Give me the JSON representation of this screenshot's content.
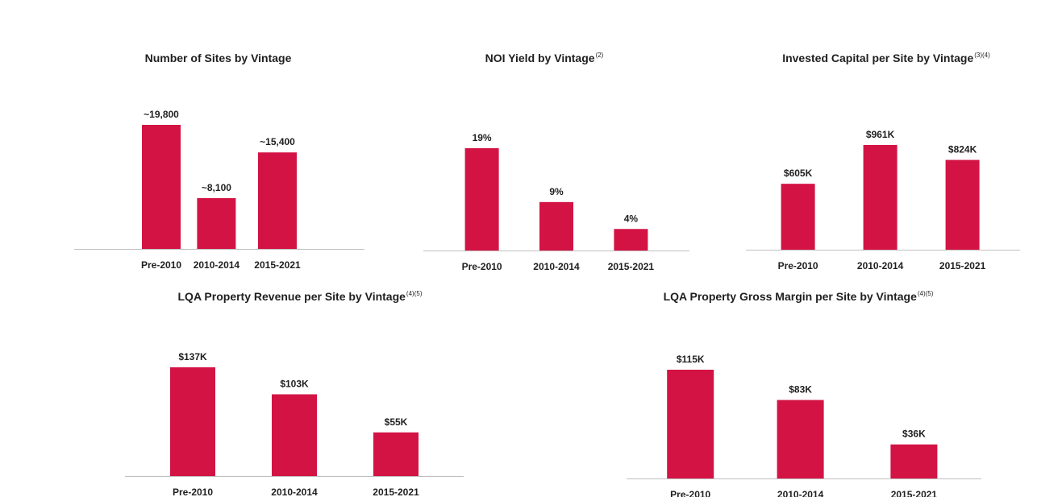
{
  "colors": {
    "bar": "#d31344",
    "axis": "#bfbfbf",
    "text": "#1f1f1f"
  },
  "chart_data": [
    {
      "type": "bar",
      "title": "Number of Sites by Vintage",
      "title_note": "",
      "categories": [
        "Pre-2010",
        "2010-2014",
        "2015-2021"
      ],
      "values": [
        19800,
        8100,
        15400
      ],
      "data_labels": [
        "~19,800",
        "~8,100",
        "~15,400"
      ],
      "grid": false,
      "legend": "none"
    },
    {
      "type": "bar",
      "title": "NOI Yield by Vintage",
      "title_note": "(2)",
      "categories": [
        "Pre-2010",
        "2010-2014",
        "2015-2021"
      ],
      "values": [
        19,
        9,
        4
      ],
      "data_labels": [
        "19%",
        "9%",
        "4%"
      ],
      "grid": false,
      "legend": "none"
    },
    {
      "type": "bar",
      "title": "Invested Capital per Site by Vintage",
      "title_note": "(3)(4)",
      "categories": [
        "Pre-2010",
        "2010-2014",
        "2015-2021"
      ],
      "values": [
        605,
        961,
        824
      ],
      "data_labels": [
        "$605K",
        "$961K",
        "$824K"
      ],
      "grid": false,
      "legend": "none"
    },
    {
      "type": "bar",
      "title": "LQA Property Revenue per Site by Vintage",
      "title_note": "(4)(5)",
      "categories": [
        "Pre-2010",
        "2010-2014",
        "2015-2021"
      ],
      "values": [
        137,
        103,
        55
      ],
      "data_labels": [
        "$137K",
        "$103K",
        "$55K"
      ],
      "grid": false,
      "legend": "none"
    },
    {
      "type": "bar",
      "title": "LQA Property Gross Margin per Site by Vintage",
      "title_note": "(4)(5)",
      "categories": [
        "Pre-2010",
        "2010-2014",
        "2015-2021"
      ],
      "values": [
        115,
        83,
        36
      ],
      "data_labels": [
        "$115K",
        "$83K",
        "$36K"
      ],
      "grid": false,
      "legend": "none"
    }
  ]
}
